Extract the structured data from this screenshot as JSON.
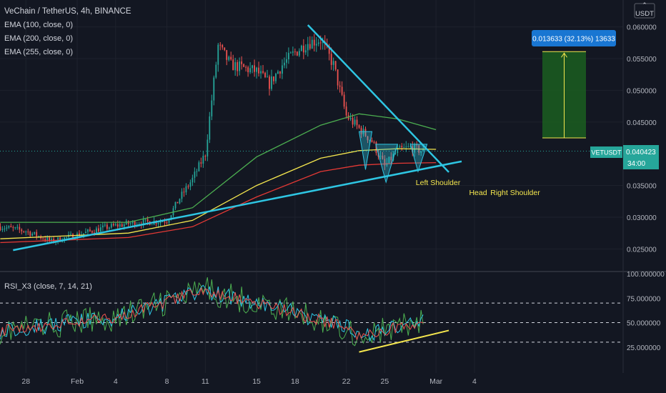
{
  "header": {
    "title": "VeChain / TetherUS, 4h, BINANCE",
    "studies": [
      "EMA (100, close, 0)",
      "EMA (200, close, 0)",
      "EMA (255, close, 0)"
    ]
  },
  "currency": "USDT",
  "rsi_label": "RSI_X3 (close, 7, 14, 21)",
  "price_tag": {
    "symbol": "VETUSDT",
    "value": "0.040423",
    "countdown": "34:00"
  },
  "measure": {
    "label": "0.013633 (32.13%) 13633"
  },
  "annotations": [
    "Left Shoulder",
    "Head",
    "Right Shoulder"
  ],
  "colors": {
    "background": "#131722",
    "candle_up": "#26a69a",
    "candle_down": "#ef5350",
    "ema100": "#4caf50",
    "ema200": "#f5e74e",
    "ema255": "#e53935",
    "trendline": "#2ec6e3",
    "rsi_trendline": "#f5e74e",
    "measure_box": "#1b5e20",
    "label_box": "#1976d2",
    "price_tag": "#26a69a"
  },
  "chart_data": [
    {
      "type": "candlestick",
      "title": "VeChain / TetherUS, 4h, BINANCE",
      "x_ticks": [
        "28",
        "Feb",
        "4",
        "8",
        "11",
        "15",
        "18",
        "22",
        "25",
        "Mar",
        "4"
      ],
      "y_ticks": [
        "0.060000",
        "0.055000",
        "0.050000",
        "0.045000",
        "0.035000",
        "0.030000",
        "0.025000"
      ],
      "ylim": [
        0.022,
        0.063
      ],
      "y_scale": "linear",
      "last_price": 0.040423,
      "close_path": [
        [
          "Jan 26",
          0.0285
        ],
        [
          "Jan 28",
          0.0278
        ],
        [
          "Jan 30",
          0.0262
        ],
        [
          "Feb 1",
          0.0272
        ],
        [
          "Feb 3",
          0.0283
        ],
        [
          "Feb 5",
          0.029
        ],
        [
          "Feb 7",
          0.0293
        ],
        [
          "Feb 8",
          0.0295
        ],
        [
          "Feb 9",
          0.033
        ],
        [
          "Feb 10",
          0.036
        ],
        [
          "Feb 11",
          0.04
        ],
        [
          "Feb 12",
          0.057
        ],
        [
          "Feb 13",
          0.054
        ],
        [
          "Feb 15",
          0.053
        ],
        [
          "Feb 16",
          0.051
        ],
        [
          "Feb 17",
          0.054
        ],
        [
          "Feb 18",
          0.056
        ],
        [
          "Feb 19",
          0.0575
        ],
        [
          "Feb 20",
          0.058
        ],
        [
          "Feb 21",
          0.054
        ],
        [
          "Feb 22",
          0.046
        ],
        [
          "Feb 23",
          0.044
        ],
        [
          "Feb 24",
          0.042
        ],
        [
          "Feb 25",
          0.038
        ],
        [
          "Feb 26",
          0.0405
        ],
        [
          "Feb 27",
          0.041
        ],
        [
          "Feb 28",
          0.0404
        ]
      ],
      "series": [
        {
          "name": "EMA (100, close, 0)",
          "values": [
            [
              "Jan 26",
              0.0292
            ],
            [
              "Feb 5",
              0.0292
            ],
            [
              "Feb 10",
              0.0315
            ],
            [
              "Feb 15",
              0.0395
            ],
            [
              "Feb 20",
              0.0445
            ],
            [
              "Feb 23",
              0.0463
            ],
            [
              "Feb 26",
              0.0455
            ],
            [
              "Mar 1",
              0.0438
            ]
          ]
        },
        {
          "name": "EMA (200, close, 0)",
          "values": [
            [
              "Jan 26",
              0.0266
            ],
            [
              "Feb 5",
              0.0275
            ],
            [
              "Feb 10",
              0.0295
            ],
            [
              "Feb 15",
              0.035
            ],
            [
              "Feb 20",
              0.0393
            ],
            [
              "Feb 23",
              0.0405
            ],
            [
              "Feb 26",
              0.0408
            ],
            [
              "Mar 1",
              0.0407
            ]
          ]
        },
        {
          "name": "EMA (255, close, 0)",
          "values": [
            [
              "Jan 26",
              0.026
            ],
            [
              "Feb 5",
              0.0268
            ],
            [
              "Feb 10",
              0.0285
            ],
            [
              "Feb 15",
              0.0332
            ],
            [
              "Feb 20",
              0.0372
            ],
            [
              "Feb 23",
              0.0382
            ],
            [
              "Feb 26",
              0.0385
            ],
            [
              "Mar 1",
              0.0386
            ]
          ]
        }
      ],
      "trendlines": [
        {
          "kind": "support",
          "from": [
            "Jan 27",
            0.0248
          ],
          "to": [
            "Mar 3",
            0.0388
          ]
        },
        {
          "kind": "resistance",
          "from": [
            "Feb 19",
            0.0603
          ],
          "to": [
            "Mar 2",
            0.0371
          ]
        }
      ],
      "pattern": {
        "name": "inverse head and shoulders",
        "labels": [
          "Left Shoulder",
          "Head",
          "Right Shoulder"
        ]
      },
      "measure": {
        "from": 0.0425,
        "to": 0.0561,
        "change": 0.013633,
        "percent": 32.13
      }
    },
    {
      "type": "line",
      "title": "RSI_X3 (close, 7, 14, 21)",
      "y_ticks": [
        "100.000000",
        "75.000000",
        "50.000000",
        "25.000000"
      ],
      "ylim": [
        0,
        100
      ],
      "levels": [
        70,
        50,
        30
      ],
      "series_values": {
        "rsi7": [
          [
            "Jan 26",
            42
          ],
          [
            "Feb 4",
            55
          ],
          [
            "Feb 11",
            83
          ],
          [
            "Feb 18",
            60
          ],
          [
            "Feb 22",
            45
          ],
          [
            "Feb 23",
            35
          ],
          [
            "Feb 28",
            52
          ]
        ]
      },
      "trendline": {
        "from": [
          "Feb 23",
          20
        ],
        "to": [
          "Mar 2",
          42
        ]
      }
    }
  ]
}
